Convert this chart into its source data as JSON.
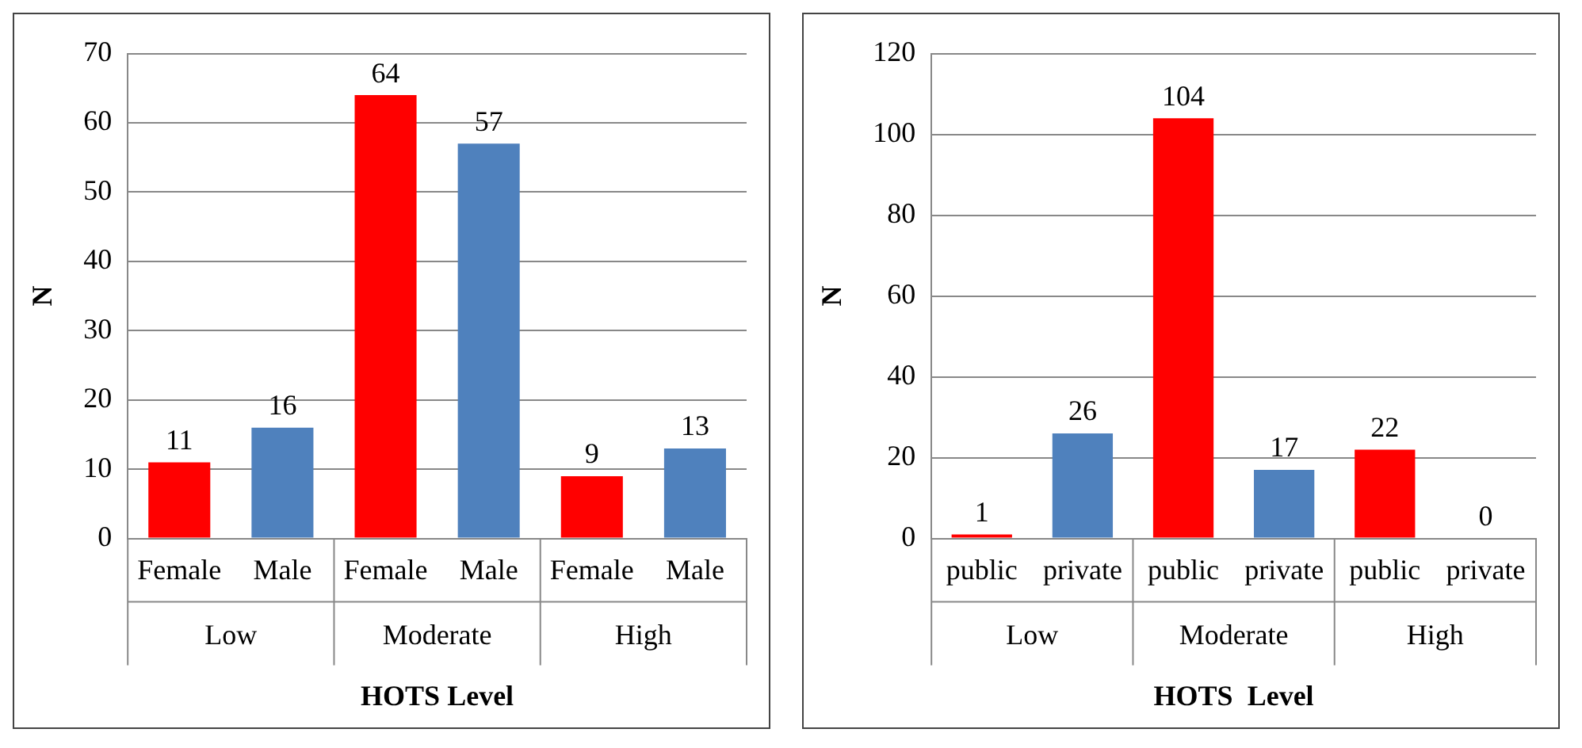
{
  "chart_data": [
    {
      "type": "bar",
      "xlabel": "HOTS Level",
      "ylabel": "N",
      "categories": [
        "Female",
        "Male",
        "Female",
        "Male",
        "Female",
        "Male"
      ],
      "values": [
        11,
        16,
        64,
        57,
        9,
        13
      ],
      "colors": [
        "#ff0000",
        "#4f81bd",
        "#ff0000",
        "#4f81bd",
        "#ff0000",
        "#4f81bd"
      ],
      "ylim": [
        0,
        70
      ],
      "yticks": [
        0,
        10,
        20,
        30,
        40,
        50,
        60,
        70
      ],
      "grid": "y",
      "legend": false,
      "data_labels": true,
      "annotations": [
        "Low",
        "Moderate",
        "High"
      ]
    },
    {
      "type": "bar",
      "xlabel": "HOTS  Level",
      "ylabel": "N",
      "categories": [
        "public",
        "private",
        "public",
        "private",
        "public",
        "private"
      ],
      "values": [
        1,
        26,
        104,
        17,
        22,
        0
      ],
      "colors": [
        "#ff0000",
        "#4f81bd",
        "#ff0000",
        "#4f81bd",
        "#ff0000",
        "#4f81bd"
      ],
      "ylim": [
        0,
        120
      ],
      "yticks": [
        0,
        20,
        40,
        60,
        80,
        100,
        120
      ],
      "grid": "y",
      "legend": false,
      "data_labels": true,
      "annotations": [
        "Low",
        "Moderate",
        "High"
      ]
    }
  ]
}
